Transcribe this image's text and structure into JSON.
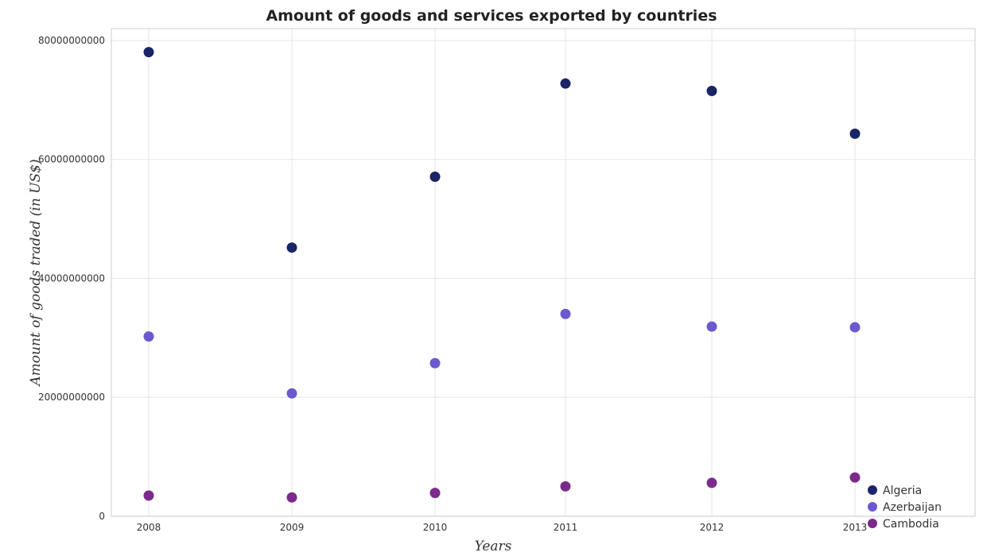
{
  "chart_data": {
    "type": "scatter",
    "title": "Amount of goods and services exported by countries",
    "xlabel": "Years",
    "ylabel": "Amount of goods traded (in US$)",
    "categories": [
      "2008",
      "2009",
      "2010",
      "2011",
      "2012",
      "2013"
    ],
    "ylim": [
      0,
      82000000000
    ],
    "yticks": [
      0,
      20000000000,
      40000000000,
      60000000000,
      80000000000
    ],
    "ytick_labels": [
      "0",
      "20000000000",
      "40000000000",
      "60000000000",
      "80000000000"
    ],
    "grid": true,
    "legend_position": "bottom-right",
    "series": [
      {
        "name": "Algeria",
        "color": "#1a2466",
        "values": [
          78040000000,
          45180000000,
          57090000000,
          72760000000,
          71520000000,
          64320000000
        ]
      },
      {
        "name": "Azerbaijan",
        "color": "#6a5acd",
        "values": [
          30230000000,
          20660000000,
          25740000000,
          34020000000,
          31900000000,
          31780000000
        ]
      },
      {
        "name": "Cambodia",
        "color": "#7b2a8b",
        "values": [
          3490000000,
          3170000000,
          3920000000,
          5030000000,
          5620000000,
          6530000000
        ]
      }
    ]
  }
}
